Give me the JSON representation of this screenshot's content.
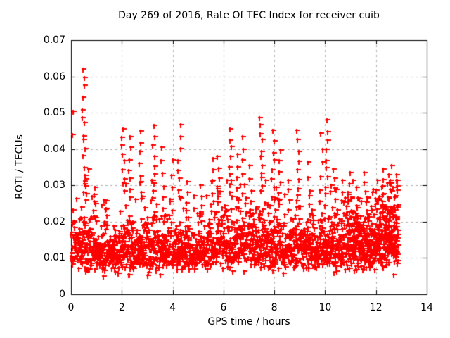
{
  "chart_data": {
    "type": "scatter",
    "title": "Day 269 of 2016, Rate Of TEC Index for receiver cuib",
    "xlabel": "GPS time / hours",
    "ylabel": "ROTI / TECUs",
    "xlim": [
      0,
      14
    ],
    "ylim": [
      0,
      0.07
    ],
    "xticks": {
      "values": [
        0,
        2,
        4,
        6,
        8,
        10,
        12,
        14
      ],
      "labels": [
        "0",
        "2",
        "4",
        "6",
        "8",
        "10",
        "12",
        "14"
      ]
    },
    "yticks": {
      "values": [
        0,
        0.01,
        0.02,
        0.03,
        0.04,
        0.05,
        0.06,
        0.07
      ],
      "labels": [
        "0",
        "0.01",
        "0.02",
        "0.03",
        "0.04",
        "0.05",
        "0.06",
        "0.07"
      ]
    },
    "grid": {
      "visible": true,
      "style": "dashed",
      "color": "#b0b0b0"
    },
    "legend": {
      "visible": false
    },
    "marker": {
      "shape": "plus",
      "color": "#ff0000",
      "size": 7,
      "thickness": 2
    },
    "axis_color": "#000000",
    "background_color": "#ffffff",
    "x_data_range": [
      0,
      12.87
    ],
    "baseline": {
      "seed": 1337,
      "dt_hours": 0.00667,
      "min_value": 0.0048,
      "cap_value": 0.0315,
      "boost_probability": 0.045,
      "segments": [
        [
          0.0,
          0.9,
          0.0135,
          0.32
        ],
        [
          0.9,
          2.0,
          0.0115,
          0.28
        ],
        [
          2.0,
          3.8,
          0.0128,
          0.33
        ],
        [
          3.8,
          5.3,
          0.012,
          0.3
        ],
        [
          5.3,
          6.6,
          0.014,
          0.33
        ],
        [
          6.6,
          8.3,
          0.014,
          0.34
        ],
        [
          8.3,
          9.6,
          0.0128,
          0.32
        ],
        [
          9.6,
          10.8,
          0.0132,
          0.33
        ],
        [
          10.8,
          12.0,
          0.0138,
          0.33
        ],
        [
          12.0,
          12.87,
          0.0155,
          0.34
        ]
      ],
      "extra_density_passes": [
        {
          "from": 10.9,
          "to": 12.87,
          "dt_hours": 0.0133
        }
      ]
    },
    "spike_columns": [
      {
        "x": 0.03,
        "min": 0.044,
        "peak": 0.0505,
        "n": 2
      },
      {
        "x": 0.5,
        "min": 0.028,
        "peak": 0.062,
        "n": 16
      },
      {
        "x": 0.62,
        "min": 0.026,
        "peak": 0.0345,
        "n": 5
      },
      {
        "x": 0.95,
        "min": 0.02,
        "peak": 0.0295,
        "n": 6
      },
      {
        "x": 1.35,
        "min": 0.018,
        "peak": 0.026,
        "n": 5
      },
      {
        "x": 2.05,
        "min": 0.029,
        "peak": 0.0455,
        "n": 9
      },
      {
        "x": 2.32,
        "min": 0.027,
        "peak": 0.0435,
        "n": 7
      },
      {
        "x": 2.72,
        "min": 0.026,
        "peak": 0.045,
        "n": 8
      },
      {
        "x": 3.25,
        "min": 0.027,
        "peak": 0.0465,
        "n": 9
      },
      {
        "x": 3.6,
        "min": 0.024,
        "peak": 0.0405,
        "n": 6
      },
      {
        "x": 3.95,
        "min": 0.023,
        "peak": 0.037,
        "n": 5
      },
      {
        "x": 4.27,
        "min": 0.027,
        "peak": 0.0467,
        "n": 8
      },
      {
        "x": 4.55,
        "min": 0.021,
        "peak": 0.031,
        "n": 5
      },
      {
        "x": 5.1,
        "min": 0.02,
        "peak": 0.03,
        "n": 5
      },
      {
        "x": 5.55,
        "min": 0.023,
        "peak": 0.0375,
        "n": 6
      },
      {
        "x": 5.8,
        "min": 0.025,
        "peak": 0.038,
        "n": 6
      },
      {
        "x": 6.28,
        "min": 0.027,
        "peak": 0.0455,
        "n": 9
      },
      {
        "x": 6.55,
        "min": 0.024,
        "peak": 0.0385,
        "n": 6
      },
      {
        "x": 6.78,
        "min": 0.028,
        "peak": 0.0435,
        "n": 6
      },
      {
        "x": 7.05,
        "min": 0.023,
        "peak": 0.0355,
        "n": 5
      },
      {
        "x": 7.48,
        "min": 0.029,
        "peak": 0.0487,
        "n": 11
      },
      {
        "x": 7.95,
        "min": 0.027,
        "peak": 0.0452,
        "n": 8
      },
      {
        "x": 8.2,
        "min": 0.026,
        "peak": 0.0398,
        "n": 6
      },
      {
        "x": 8.6,
        "min": 0.021,
        "peak": 0.0315,
        "n": 5
      },
      {
        "x": 8.93,
        "min": 0.027,
        "peak": 0.0452,
        "n": 8
      },
      {
        "x": 9.35,
        "min": 0.022,
        "peak": 0.0365,
        "n": 5
      },
      {
        "x": 9.85,
        "min": 0.026,
        "peak": 0.0445,
        "n": 6
      },
      {
        "x": 10.05,
        "min": 0.028,
        "peak": 0.0481,
        "n": 9
      },
      {
        "x": 10.35,
        "min": 0.022,
        "peak": 0.0345,
        "n": 6
      },
      {
        "x": 10.7,
        "min": 0.02,
        "peak": 0.0315,
        "n": 5
      },
      {
        "x": 10.95,
        "min": 0.021,
        "peak": 0.0335,
        "n": 6
      },
      {
        "x": 11.3,
        "min": 0.019,
        "peak": 0.0295,
        "n": 5
      },
      {
        "x": 11.6,
        "min": 0.021,
        "peak": 0.0335,
        "n": 6
      },
      {
        "x": 12.0,
        "min": 0.019,
        "peak": 0.0315,
        "n": 6
      },
      {
        "x": 12.3,
        "min": 0.021,
        "peak": 0.0345,
        "n": 7
      },
      {
        "x": 12.55,
        "min": 0.021,
        "peak": 0.0355,
        "n": 8
      },
      {
        "x": 12.78,
        "min": 0.019,
        "peak": 0.033,
        "n": 6
      }
    ]
  }
}
